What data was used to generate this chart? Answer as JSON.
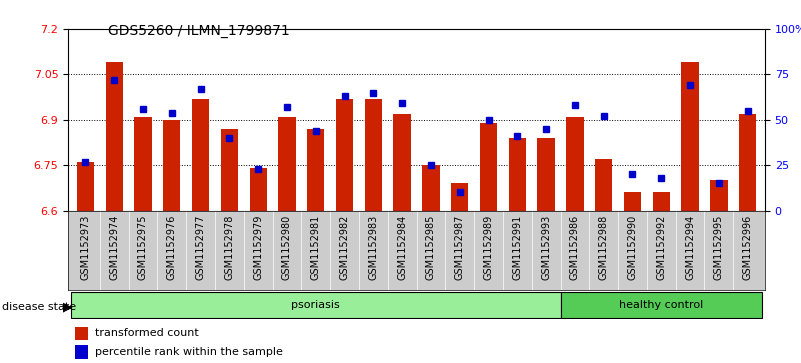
{
  "title": "GDS5260 / ILMN_1799871",
  "samples": [
    "GSM1152973",
    "GSM1152974",
    "GSM1152975",
    "GSM1152976",
    "GSM1152977",
    "GSM1152978",
    "GSM1152979",
    "GSM1152980",
    "GSM1152981",
    "GSM1152982",
    "GSM1152983",
    "GSM1152984",
    "GSM1152985",
    "GSM1152987",
    "GSM1152989",
    "GSM1152991",
    "GSM1152993",
    "GSM1152986",
    "GSM1152988",
    "GSM1152990",
    "GSM1152992",
    "GSM1152994",
    "GSM1152995",
    "GSM1152996"
  ],
  "transformed_count": [
    6.76,
    7.09,
    6.91,
    6.9,
    6.97,
    6.87,
    6.74,
    6.91,
    6.87,
    6.97,
    6.97,
    6.92,
    6.75,
    6.69,
    6.89,
    6.84,
    6.84,
    6.91,
    6.77,
    6.66,
    6.66,
    7.09,
    6.7,
    6.92
  ],
  "percentile_rank": [
    27,
    72,
    56,
    54,
    67,
    40,
    23,
    57,
    44,
    63,
    65,
    59,
    25,
    10,
    50,
    41,
    45,
    58,
    52,
    20,
    18,
    69,
    15,
    55
  ],
  "psoriasis_count": 17,
  "healthy_count": 7,
  "y_min": 6.6,
  "y_max": 7.2,
  "y_ticks": [
    6.6,
    6.75,
    6.9,
    7.05,
    7.2
  ],
  "right_y_ticks": [
    0,
    25,
    50,
    75,
    100
  ],
  "right_y_labels": [
    "0",
    "25",
    "50",
    "75",
    "100%"
  ],
  "bar_color": "#cc2200",
  "dot_color": "#0000cc",
  "psoriasis_color": "#99ee99",
  "healthy_color": "#55cc55",
  "xticklabel_bg": "#cccccc",
  "legend_red_label": "transformed count",
  "legend_blue_label": "percentile rank within the sample"
}
